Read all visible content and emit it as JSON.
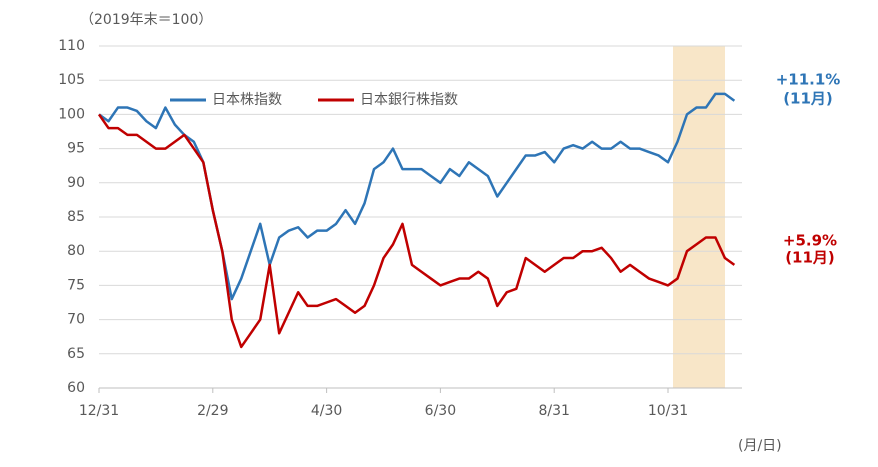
{
  "chart_data": {
    "type": "line",
    "y_label": "（2019年末＝100）",
    "x_label": "(月/日)",
    "categories": [
      "12/31",
      null,
      null,
      null,
      null,
      null,
      null,
      null,
      null,
      null,
      null,
      null,
      "2/29",
      null,
      null,
      null,
      null,
      null,
      null,
      null,
      null,
      null,
      null,
      null,
      "4/30",
      null,
      null,
      null,
      null,
      null,
      null,
      null,
      null,
      null,
      null,
      null,
      "6/30",
      null,
      null,
      null,
      null,
      null,
      null,
      null,
      null,
      null,
      null,
      null,
      "8/31",
      null,
      null,
      null,
      null,
      null,
      null,
      null,
      null,
      null,
      null,
      null,
      "10/31",
      null,
      null,
      null,
      null,
      null,
      null,
      null
    ],
    "series": [
      {
        "name": "日本株指数",
        "color": "#2e75b6",
        "values": [
          100,
          99,
          101,
          101,
          100.5,
          99,
          98,
          101,
          98.5,
          97,
          96,
          93,
          86,
          80,
          73,
          76,
          80,
          84,
          78,
          82,
          83,
          83.5,
          82,
          83,
          83,
          84,
          86,
          84,
          87,
          92,
          93,
          95,
          92,
          92,
          92,
          91,
          90,
          92,
          91,
          93,
          92,
          91,
          88,
          90,
          92,
          94,
          94,
          94.5,
          93,
          95,
          95.5,
          95,
          96,
          95,
          95,
          96,
          95,
          95,
          94.5,
          94,
          93,
          96,
          100,
          101,
          101,
          103,
          103,
          102
        ]
      },
      {
        "name": "日本銀行株指数",
        "color": "#c00000",
        "values": [
          100,
          98,
          98,
          97,
          97,
          96,
          95,
          95,
          96,
          97,
          95,
          93,
          86,
          80,
          70,
          66,
          68,
          70,
          78,
          68,
          71,
          74,
          72,
          72,
          72.5,
          73,
          72,
          71,
          72,
          75,
          79,
          81,
          84,
          78,
          77,
          76,
          75,
          75.5,
          76,
          76,
          77,
          76,
          72,
          74,
          74.5,
          79,
          78,
          77,
          78,
          79,
          79,
          80,
          80,
          80.5,
          79,
          77,
          78,
          77,
          76,
          75.5,
          75,
          76,
          80,
          81,
          82,
          82,
          79,
          78
        ]
      }
    ],
    "annotations": [
      {
        "text": "+11.1%",
        "color": "#2e75b6"
      },
      {
        "text": "(11月)",
        "color": "#2e75b6"
      },
      {
        "text": "+5.9%",
        "color": "#c00000"
      },
      {
        "text": "(11月)",
        "color": "#c00000"
      }
    ],
    "ylim": [
      60,
      110
    ],
    "yticks": [
      60,
      65,
      70,
      75,
      80,
      85,
      90,
      95,
      100,
      105,
      110
    ],
    "grid": true
  }
}
